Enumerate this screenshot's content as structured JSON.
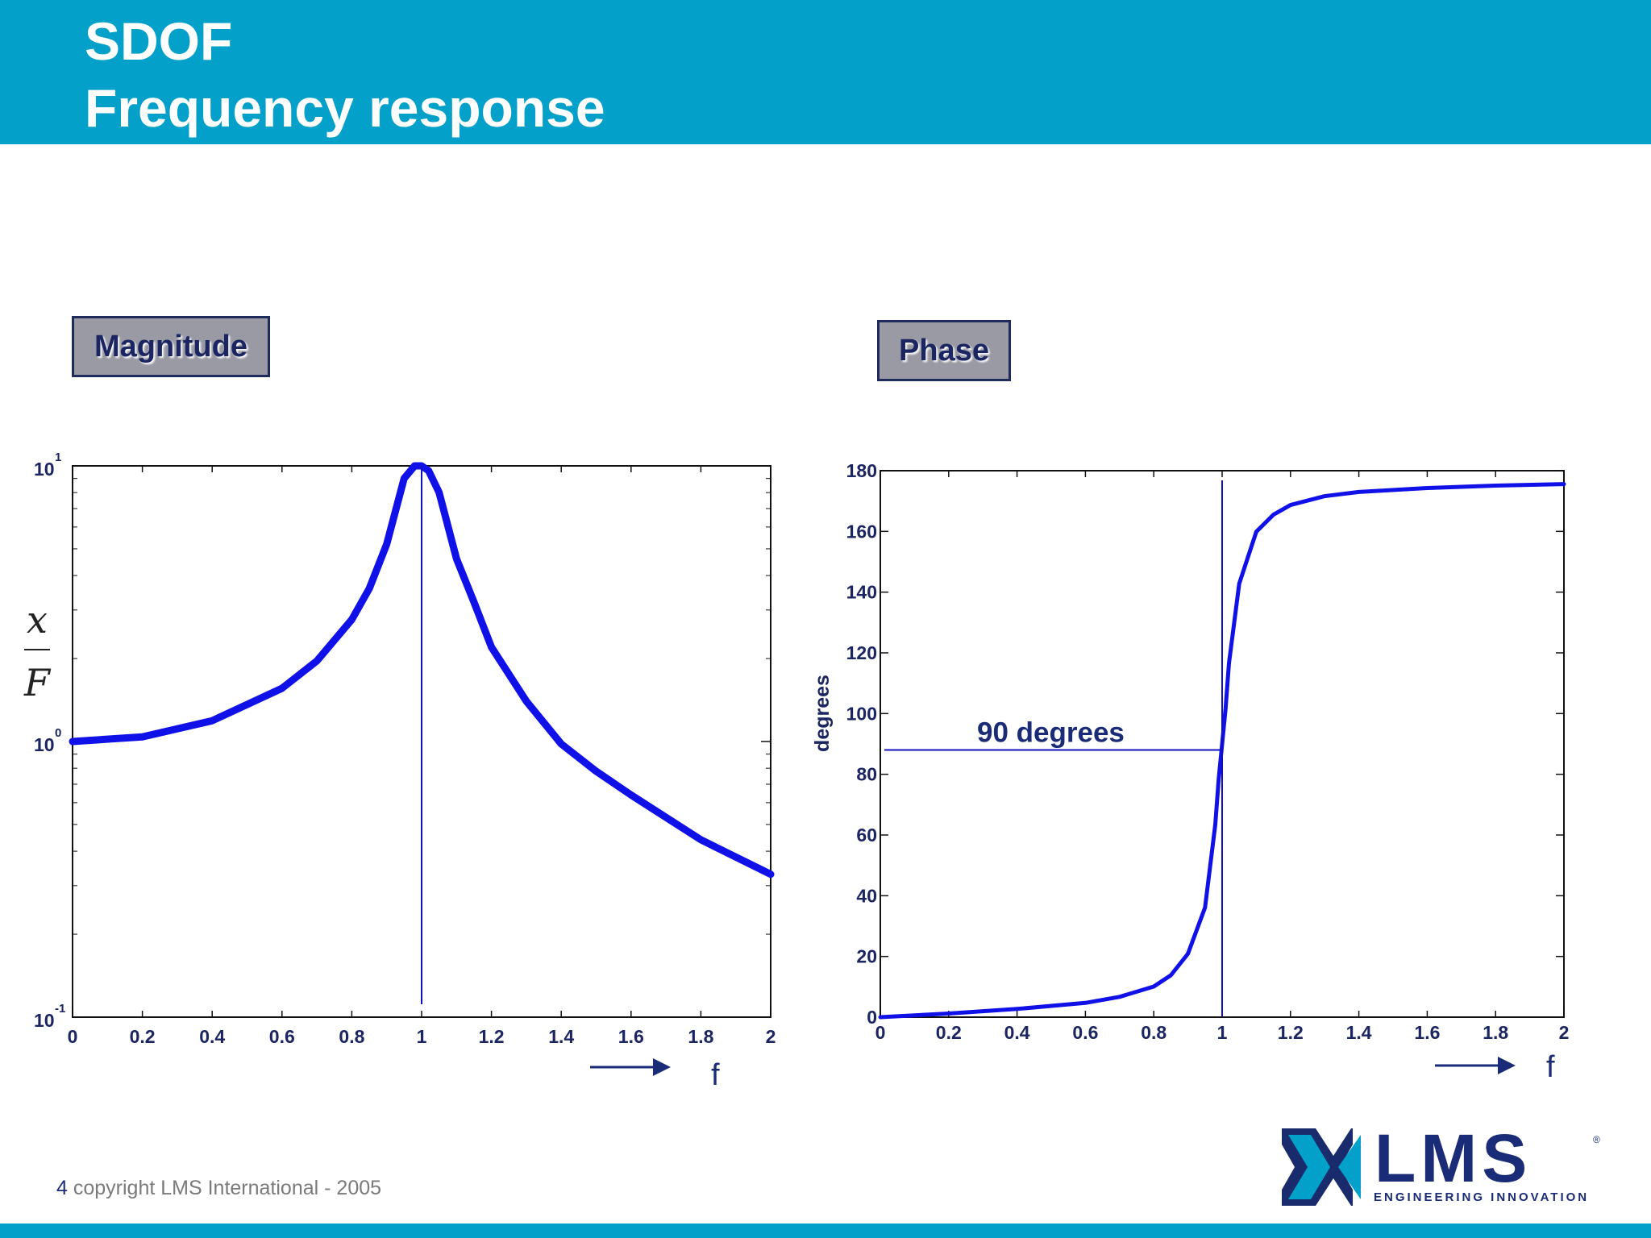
{
  "header": {
    "title_line1": "SDOF",
    "title_line2": "Frequency response"
  },
  "labels": {
    "magnitude": "Magnitude",
    "phase": "Phase"
  },
  "footer": {
    "page_number": "4",
    "copyright": "copyright LMS International - 2005"
  },
  "logo": {
    "name": "LMS",
    "tagline": "ENGINEERING INNOVATION",
    "registered": "®"
  },
  "colors": {
    "header": "#03a0c9",
    "curve": "#1010e8",
    "text_dark": "#1a2562"
  },
  "chart_data": [
    {
      "type": "line",
      "title": "Magnitude",
      "xlabel": "f",
      "ylabel": "x / F",
      "ylabel_numerator": "x",
      "ylabel_denominator": "F",
      "yscale": "log",
      "xlim": [
        0,
        2
      ],
      "ylim": [
        0.1,
        10
      ],
      "x_ticks": [
        "0",
        "0.2",
        "0.4",
        "0.6",
        "0.8",
        "1",
        "1.2",
        "1.4",
        "1.6",
        "1.8",
        "2"
      ],
      "y_ticks": [
        {
          "base": "10",
          "exp": "-1"
        },
        {
          "base": "10",
          "exp": "0"
        },
        {
          "base": "10",
          "exp": "1"
        }
      ],
      "series": [
        {
          "x": [
            0,
            0.2,
            0.4,
            0.6,
            0.7,
            0.8,
            0.85,
            0.9,
            0.95,
            0.98,
            1.0,
            1.02,
            1.05,
            1.1,
            1.15,
            1.2,
            1.3,
            1.4,
            1.5,
            1.6,
            1.8,
            2.0
          ],
          "y": [
            1.0,
            1.04,
            1.19,
            1.56,
            1.96,
            2.77,
            3.59,
            5.2,
            9.0,
            10.0,
            10.0,
            9.6,
            8.0,
            4.6,
            3.2,
            2.2,
            1.4,
            0.98,
            0.78,
            0.64,
            0.44,
            0.33
          ]
        }
      ],
      "marker_line_x": 1
    },
    {
      "type": "line",
      "title": "Phase",
      "xlabel": "f",
      "ylabel": "degrees",
      "xlim": [
        0,
        2
      ],
      "ylim": [
        0,
        180
      ],
      "x_ticks": [
        "0",
        "0.2",
        "0.4",
        "0.6",
        "0.8",
        "1",
        "1.2",
        "1.4",
        "1.6",
        "1.8",
        "2"
      ],
      "y_ticks": [
        "0",
        "20",
        "40",
        "60",
        "80",
        "100",
        "120",
        "140",
        "160",
        "180"
      ],
      "series": [
        {
          "x": [
            0,
            0.2,
            0.4,
            0.6,
            0.7,
            0.8,
            0.85,
            0.9,
            0.95,
            0.98,
            0.99,
            1.0,
            1.01,
            1.02,
            1.05,
            1.1,
            1.15,
            1.2,
            1.3,
            1.4,
            1.6,
            1.8,
            2.0
          ],
          "y": [
            0,
            1.2,
            2.7,
            4.7,
            6.7,
            10.1,
            13.8,
            20.9,
            36.1,
            63.4,
            78.6,
            90,
            101.4,
            116.6,
            142.8,
            159.9,
            165.5,
            168.7,
            171.6,
            173.0,
            174.3,
            175.1,
            175.6
          ]
        }
      ],
      "annotation": "90 degrees",
      "annotation_y": 88,
      "marker_line_x": 1
    }
  ]
}
